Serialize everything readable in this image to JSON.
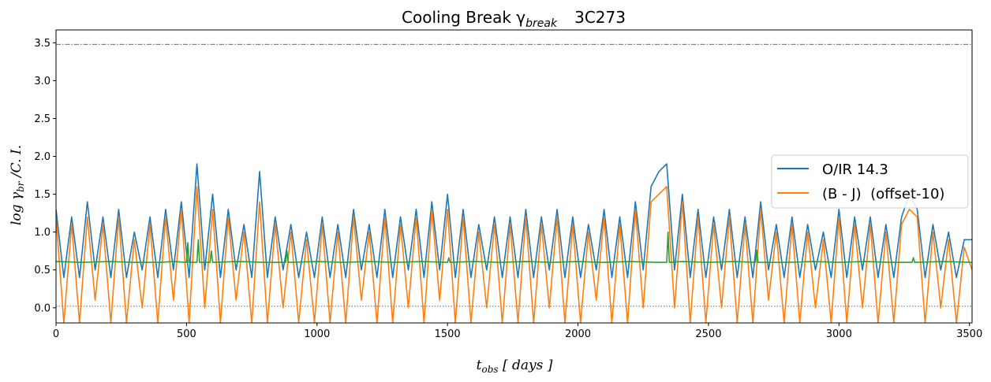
{
  "chart_data": {
    "type": "line",
    "title": "Cooling Break γ",
    "title_sub": "break",
    "title_object": "3C273",
    "xlabel_main": "t",
    "xlabel_sub": "obs",
    "xlabel_rest": " [ days ]",
    "ylabel_main": "log γ",
    "ylabel_sub": "br",
    "ylabel_rest": " /C. I.",
    "xlim": [
      0,
      3510
    ],
    "ylim": [
      -0.2,
      3.67
    ],
    "xticks": [
      0,
      500,
      1000,
      1500,
      2000,
      2500,
      3000,
      3500
    ],
    "xtick_labels": [
      "0",
      "500",
      "1000",
      "1500",
      "2000",
      "2500",
      "3000",
      "3500"
    ],
    "yticks": [
      0.0,
      0.5,
      1.0,
      1.5,
      2.0,
      2.5,
      3.0,
      3.5
    ],
    "ytick_labels": [
      "0.0",
      "0.5",
      "1.0",
      "1.5",
      "2.0",
      "2.5",
      "3.0",
      "3.5"
    ],
    "reference_lines": [
      {
        "y": 3.48,
        "style": "dashdot",
        "color": "#333333"
      },
      {
        "y": 0.02,
        "style": "dotted",
        "color": "#333333"
      }
    ],
    "legend": {
      "placement": "right",
      "entries": [
        "O/IR 14.3",
        "(B - J)  (offset-10)"
      ]
    },
    "series": [
      {
        "name": "O/IR 14.3",
        "color": "#1f77b4",
        "x": [
          0,
          30,
          60,
          90,
          120,
          150,
          180,
          210,
          240,
          270,
          300,
          330,
          360,
          390,
          420,
          450,
          480,
          510,
          540,
          570,
          600,
          630,
          660,
          690,
          720,
          750,
          780,
          810,
          840,
          870,
          900,
          930,
          960,
          990,
          1020,
          1050,
          1080,
          1110,
          1140,
          1170,
          1200,
          1230,
          1260,
          1290,
          1320,
          1350,
          1380,
          1410,
          1440,
          1470,
          1500,
          1530,
          1560,
          1590,
          1620,
          1650,
          1680,
          1710,
          1740,
          1770,
          1800,
          1830,
          1860,
          1890,
          1920,
          1950,
          1980,
          2010,
          2040,
          2070,
          2100,
          2130,
          2160,
          2190,
          2220,
          2250,
          2280,
          2310,
          2340,
          2370,
          2400,
          2430,
          2460,
          2490,
          2520,
          2550,
          2580,
          2610,
          2640,
          2670,
          2700,
          2730,
          2760,
          2790,
          2820,
          2850,
          2880,
          2910,
          2940,
          2970,
          3000,
          3030,
          3060,
          3090,
          3120,
          3150,
          3180,
          3210,
          3240,
          3270,
          3300,
          3330,
          3360,
          3390,
          3420,
          3450,
          3480,
          3510
        ],
        "values": [
          1.3,
          0.4,
          1.2,
          0.4,
          1.4,
          0.5,
          1.2,
          0.4,
          1.3,
          0.4,
          1.0,
          0.5,
          1.2,
          0.4,
          1.3,
          0.5,
          1.4,
          0.4,
          1.9,
          0.5,
          1.5,
          0.4,
          1.3,
          0.5,
          1.1,
          0.4,
          1.8,
          0.4,
          1.2,
          0.5,
          1.1,
          0.4,
          1.0,
          0.4,
          1.2,
          0.4,
          1.1,
          0.4,
          1.3,
          0.5,
          1.1,
          0.4,
          1.3,
          0.4,
          1.2,
          0.5,
          1.3,
          0.4,
          1.4,
          0.5,
          1.5,
          0.4,
          1.3,
          0.4,
          1.1,
          0.5,
          1.2,
          0.4,
          1.2,
          0.4,
          1.3,
          0.4,
          1.2,
          0.5,
          1.3,
          0.4,
          1.2,
          0.4,
          1.1,
          0.5,
          1.3,
          0.4,
          1.2,
          0.4,
          1.4,
          0.5,
          1.6,
          1.8,
          1.9,
          0.5,
          1.5,
          0.4,
          1.3,
          0.4,
          1.2,
          0.5,
          1.3,
          0.4,
          1.2,
          0.4,
          1.4,
          0.5,
          1.1,
          0.4,
          1.2,
          0.4,
          1.1,
          0.5,
          1.0,
          0.4,
          1.3,
          0.4,
          1.2,
          0.5,
          1.2,
          0.4,
          1.1,
          0.4,
          1.2,
          1.5,
          1.3,
          0.4,
          1.1,
          0.5,
          1.0,
          0.4,
          0.9,
          0.9
        ]
      },
      {
        "name": "(B - J)  (offset-10)",
        "color": "#ff7f0e",
        "x": [
          0,
          30,
          60,
          90,
          120,
          150,
          180,
          210,
          240,
          270,
          300,
          330,
          360,
          390,
          420,
          450,
          480,
          510,
          540,
          570,
          600,
          630,
          660,
          690,
          720,
          750,
          780,
          810,
          840,
          870,
          900,
          930,
          960,
          990,
          1020,
          1050,
          1080,
          1110,
          1140,
          1170,
          1200,
          1230,
          1260,
          1290,
          1320,
          1350,
          1380,
          1410,
          1440,
          1470,
          1500,
          1530,
          1560,
          1590,
          1620,
          1650,
          1680,
          1710,
          1740,
          1770,
          1800,
          1830,
          1860,
          1890,
          1920,
          1950,
          1980,
          2010,
          2040,
          2070,
          2100,
          2130,
          2160,
          2190,
          2220,
          2250,
          2280,
          2310,
          2340,
          2370,
          2400,
          2430,
          2460,
          2490,
          2520,
          2550,
          2580,
          2610,
          2640,
          2670,
          2700,
          2730,
          2760,
          2790,
          2820,
          2850,
          2880,
          2910,
          2940,
          2970,
          3000,
          3030,
          3060,
          3090,
          3120,
          3150,
          3180,
          3210,
          3240,
          3270,
          3300,
          3330,
          3360,
          3390,
          3420,
          3450,
          3480,
          3510
        ],
        "values": [
          1.2,
          -0.2,
          1.1,
          -0.2,
          1.2,
          0.1,
          1.1,
          -0.2,
          1.2,
          -0.2,
          0.9,
          0.0,
          1.1,
          -0.2,
          1.2,
          0.1,
          1.3,
          -0.2,
          1.6,
          0.0,
          1.3,
          -0.2,
          1.2,
          0.1,
          1.0,
          -0.2,
          1.4,
          -0.2,
          1.1,
          0.0,
          1.0,
          -0.2,
          0.9,
          -0.2,
          1.1,
          -0.2,
          1.0,
          -0.2,
          1.2,
          0.1,
          1.0,
          -0.2,
          1.2,
          -0.2,
          1.1,
          0.0,
          1.2,
          -0.2,
          1.3,
          0.1,
          1.3,
          -0.2,
          1.2,
          -0.2,
          1.0,
          0.0,
          1.1,
          -0.2,
          1.1,
          -0.2,
          1.2,
          -0.2,
          1.1,
          0.0,
          1.2,
          -0.2,
          1.1,
          -0.2,
          1.0,
          0.1,
          1.2,
          -0.2,
          1.1,
          -0.2,
          1.3,
          0.0,
          1.4,
          1.5,
          1.6,
          0.0,
          1.4,
          -0.2,
          1.2,
          -0.2,
          1.1,
          0.0,
          1.2,
          -0.2,
          1.1,
          -0.2,
          1.3,
          0.1,
          1.0,
          -0.2,
          1.1,
          -0.2,
          1.0,
          0.0,
          0.9,
          -0.2,
          1.2,
          -0.2,
          1.1,
          0.0,
          1.1,
          -0.2,
          1.0,
          -0.2,
          1.1,
          1.3,
          1.2,
          -0.2,
          1.0,
          0.0,
          0.9,
          -0.2,
          0.8,
          0.5
        ]
      },
      {
        "name": "",
        "color": "#2ca02c",
        "x": [
          0,
          100,
          200,
          300,
          400,
          450,
          500,
          505,
          510,
          540,
          545,
          550,
          590,
          595,
          600,
          700,
          800,
          880,
          885,
          890,
          1000,
          1100,
          1200,
          1300,
          1400,
          1500,
          1505,
          1510,
          1600,
          1700,
          1800,
          1900,
          2000,
          2100,
          2200,
          2300,
          2340,
          2345,
          2350,
          2400,
          2500,
          2600,
          2680,
          2685,
          2690,
          2800,
          2900,
          3000,
          3100,
          3200,
          3280,
          3285,
          3290,
          3400,
          3510
        ],
        "values": [
          0.61,
          0.6,
          0.61,
          0.6,
          0.6,
          0.61,
          0.6,
          0.86,
          0.6,
          0.6,
          0.9,
          0.6,
          0.6,
          0.75,
          0.6,
          0.61,
          0.6,
          0.6,
          0.75,
          0.6,
          0.61,
          0.6,
          0.61,
          0.6,
          0.61,
          0.6,
          0.66,
          0.6,
          0.61,
          0.6,
          0.61,
          0.6,
          0.61,
          0.6,
          0.61,
          0.6,
          0.6,
          1.0,
          0.6,
          0.61,
          0.6,
          0.61,
          0.6,
          0.76,
          0.6,
          0.6,
          0.61,
          0.6,
          0.61,
          0.6,
          0.6,
          0.66,
          0.6,
          0.61,
          0.6
        ]
      }
    ]
  }
}
